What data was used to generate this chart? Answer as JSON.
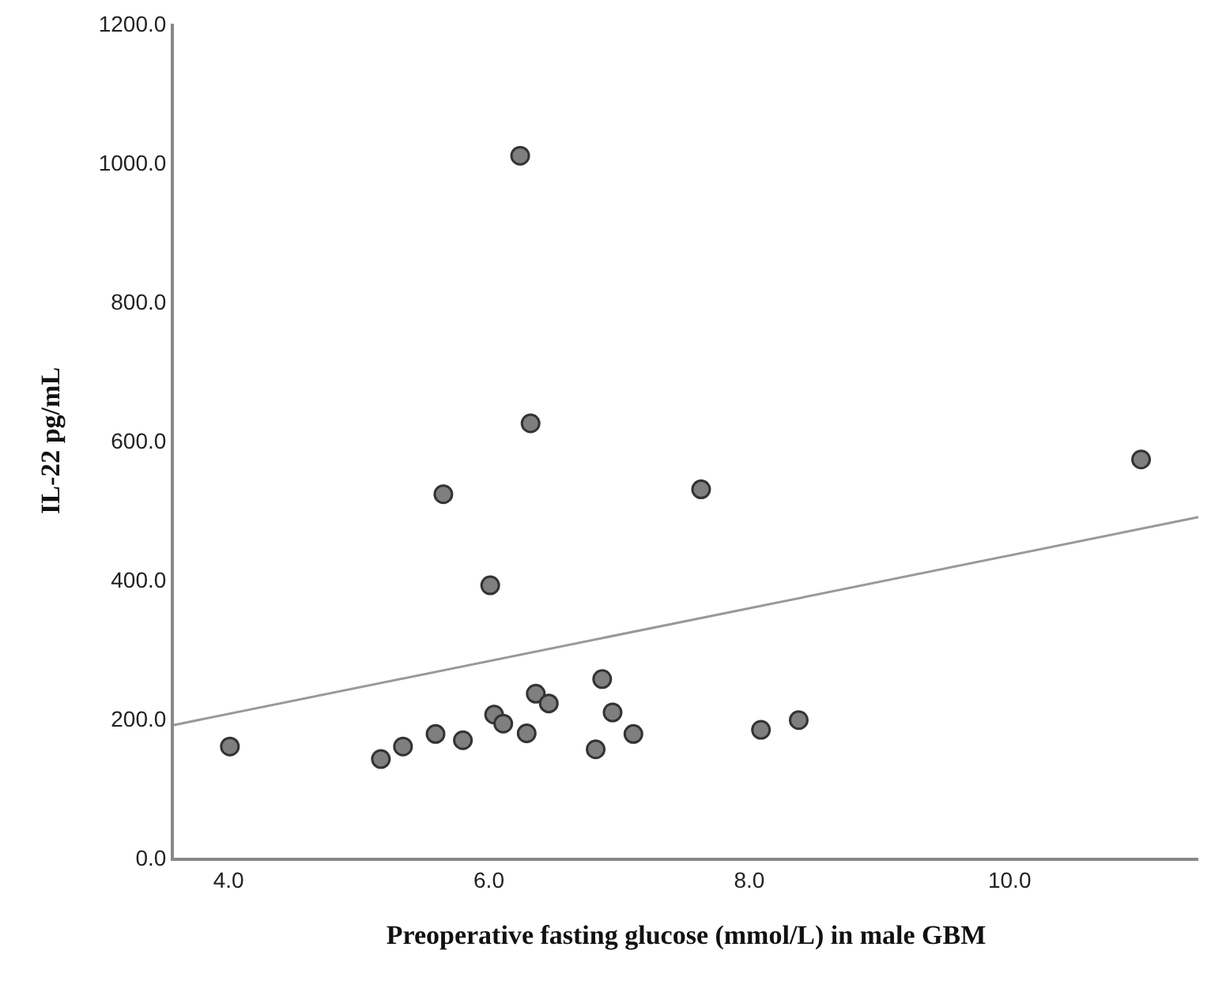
{
  "chart_data": {
    "type": "scatter",
    "xlabel": "Preoperative fasting glucose (mmol/L) in male GBM",
    "ylabel": "IL-22 pg/mL",
    "xlim": [
      3.58,
      11.45
    ],
    "xticks": [
      {
        "value": 4,
        "label": "4.0"
      },
      {
        "value": 6,
        "label": "6.0"
      },
      {
        "value": 8,
        "label": "8.0"
      },
      {
        "value": 10,
        "label": "10.0"
      }
    ],
    "ylim": [
      0,
      1200
    ],
    "yticks": [
      {
        "value": 0,
        "label": "0.0"
      },
      {
        "value": 200,
        "label": "200.0"
      },
      {
        "value": 400,
        "label": "400.0"
      },
      {
        "value": 600,
        "label": "600.0"
      },
      {
        "value": 800,
        "label": "800.0"
      },
      {
        "value": 1000,
        "label": "1000.0"
      },
      {
        "value": 1200,
        "label": "1200.0"
      }
    ],
    "marker": "circle",
    "series": [
      {
        "color": "#7f7f7f",
        "x": [
          4.01,
          5.17,
          5.34,
          5.59,
          5.8,
          6.04,
          6.11,
          6.29,
          6.36,
          6.46,
          6.82,
          6.87,
          6.95,
          7.11,
          8.09,
          8.38,
          6.01,
          5.65,
          7.63,
          6.24,
          6.32,
          11.01
        ],
        "values": [
          160,
          142,
          160,
          178,
          169,
          206,
          193,
          179,
          236,
          222,
          156,
          257,
          209,
          178,
          184,
          198,
          392,
          523,
          530,
          1010,
          625,
          573
        ]
      },
      {
        "type": "line",
        "color": "#999999",
        "marker": "none",
        "x": [
          3.58,
          11.45
        ],
        "values": [
          191,
          490
        ]
      }
    ]
  }
}
